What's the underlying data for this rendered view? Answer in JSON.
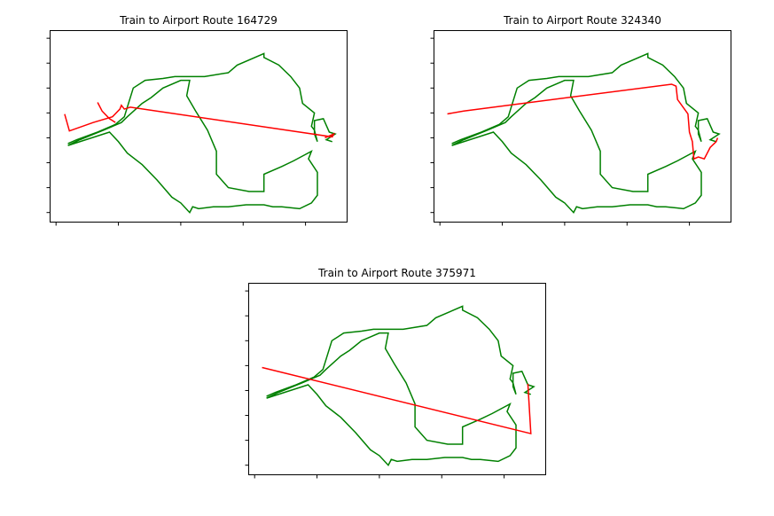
{
  "colors": {
    "route": "#008000",
    "path": "#ff0000",
    "axes": "#000000"
  },
  "chart_data": [
    {
      "type": "line",
      "title": "Train to Airport Route 164729",
      "xlabel": "",
      "ylabel": "",
      "grid": false,
      "series": [
        {
          "role": "route",
          "segments": []
        },
        {
          "role": "path",
          "points": [
            [
              0.049,
              0.564
            ],
            [
              0.065,
              0.476
            ],
            [
              0.145,
              0.52
            ],
            [
              0.21,
              0.55
            ],
            [
              0.235,
              0.59
            ],
            [
              0.24,
              0.61
            ],
            [
              0.25,
              0.59
            ],
            [
              0.27,
              0.6
            ],
            [
              0.95,
              0.445
            ],
            [
              0.955,
              0.46
            ],
            [
              0.94,
              0.45
            ],
            [
              0.925,
              0.44
            ]
          ]
        },
        {
          "role": "path",
          "points": [
            [
              0.16,
              0.625
            ],
            [
              0.175,
              0.58
            ],
            [
              0.2,
              0.54
            ],
            [
              0.21,
              0.53
            ],
            [
              0.22,
              0.52
            ]
          ]
        }
      ]
    },
    {
      "type": "line",
      "title": "Train to Airport Route 324340",
      "xlabel": "",
      "ylabel": "",
      "grid": false,
      "series": [
        {
          "role": "route",
          "segments": []
        },
        {
          "role": "path",
          "points": [
            [
              0.045,
              0.565
            ],
            [
              0.1,
              0.58
            ],
            [
              0.8,
              0.72
            ],
            [
              0.815,
              0.71
            ],
            [
              0.82,
              0.64
            ],
            [
              0.855,
              0.565
            ],
            [
              0.86,
              0.47
            ],
            [
              0.87,
              0.42
            ],
            [
              0.875,
              0.33
            ],
            [
              0.89,
              0.34
            ],
            [
              0.91,
              0.33
            ],
            [
              0.93,
              0.39
            ],
            [
              0.95,
              0.42
            ],
            [
              0.955,
              0.44
            ]
          ]
        }
      ]
    },
    {
      "type": "line",
      "title": "Train to Airport Route 375971",
      "xlabel": "",
      "ylabel": "",
      "grid": false,
      "series": [
        {
          "role": "route",
          "segments": []
        },
        {
          "role": "path",
          "points": [
            [
              0.045,
              0.56
            ],
            [
              0.95,
              0.215
            ],
            [
              0.94,
              0.475
            ]
          ]
        }
      ]
    }
  ]
}
